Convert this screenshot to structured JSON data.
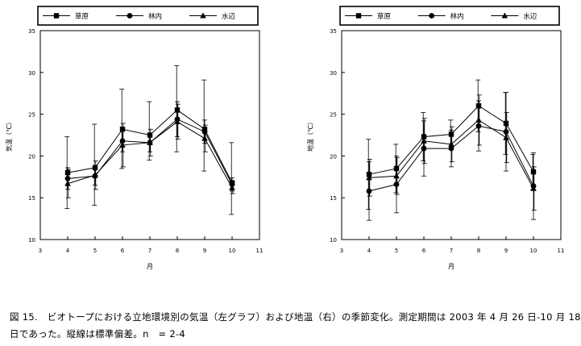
{
  "chart_data": [
    {
      "type": "line",
      "title": "",
      "xlabel": "月",
      "ylabel": "気温（℃）",
      "xlim": [
        3,
        11
      ],
      "ylim": [
        10,
        35
      ],
      "xticks": [
        3,
        4,
        5,
        6,
        7,
        8,
        9,
        10,
        11
      ],
      "yticks": [
        10,
        15,
        20,
        25,
        30,
        35
      ],
      "legend_position": "top",
      "x": [
        4,
        5,
        6,
        7,
        8,
        9,
        10
      ],
      "series": [
        {
          "name": "草原",
          "marker": "square",
          "values": [
            18.0,
            18.6,
            23.2,
            22.5,
            25.5,
            23.2,
            16.8
          ],
          "err": [
            [
              13.7,
              22.3
            ],
            [
              14.1,
              23.8
            ],
            [
              18.5,
              28.0
            ],
            [
              19.5,
              26.5
            ],
            [
              20.5,
              30.8
            ],
            [
              18.2,
              29.1
            ],
            [
              13.0,
              21.6
            ]
          ]
        },
        {
          "name": "林内",
          "marker": "circle",
          "values": [
            17.3,
            17.6,
            21.8,
            21.6,
            24.4,
            22.9,
            16.6
          ],
          "err": [
            [
              16.0,
              18.6
            ],
            [
              16.5,
              18.7
            ],
            [
              20.5,
              23.1
            ],
            [
              20.5,
              22.7
            ],
            [
              22.3,
              26.5
            ],
            [
              21.5,
              24.3
            ],
            [
              15.8,
              17.4
            ]
          ]
        },
        {
          "name": "水辺",
          "marker": "triangle",
          "values": [
            16.7,
            17.7,
            21.3,
            21.6,
            24.1,
            22.1,
            16.2
          ],
          "err": [
            [
              15.0,
              18.4
            ],
            [
              16.0,
              19.4
            ],
            [
              18.7,
              23.9
            ],
            [
              20.0,
              23.2
            ],
            [
              22.0,
              26.2
            ],
            [
              20.5,
              23.7
            ],
            [
              15.5,
              16.9
            ]
          ]
        }
      ]
    },
    {
      "type": "line",
      "title": "",
      "xlabel": "月",
      "ylabel": "地温（℃）",
      "xlim": [
        3,
        11
      ],
      "ylim": [
        10,
        35
      ],
      "xticks": [
        3,
        4,
        5,
        6,
        7,
        8,
        9,
        10,
        11
      ],
      "yticks": [
        10,
        15,
        20,
        25,
        30,
        35
      ],
      "legend_position": "top",
      "x": [
        4,
        5,
        6,
        7,
        8,
        9,
        10
      ],
      "series": [
        {
          "name": "草原",
          "marker": "square",
          "values": [
            17.8,
            18.5,
            22.3,
            22.6,
            26.0,
            23.9,
            18.1
          ],
          "err": [
            [
              13.6,
              22.0
            ],
            [
              15.6,
              21.4
            ],
            [
              19.4,
              25.2
            ],
            [
              20.9,
              24.3
            ],
            [
              22.9,
              29.1
            ],
            [
              20.2,
              27.6
            ],
            [
              16.0,
              20.2
            ]
          ]
        },
        {
          "name": "林内",
          "marker": "circle",
          "values": [
            15.8,
            16.6,
            20.9,
            20.9,
            23.6,
            22.9,
            16.4
          ],
          "err": [
            [
              12.3,
              19.3
            ],
            [
              13.2,
              20.0
            ],
            [
              17.6,
              24.2
            ],
            [
              18.7,
              23.1
            ],
            [
              20.6,
              26.6
            ],
            [
              18.2,
              27.6
            ],
            [
              12.4,
              20.4
            ]
          ]
        },
        {
          "name": "水辺",
          "marker": "triangle",
          "values": [
            17.4,
            17.6,
            21.8,
            21.4,
            24.3,
            22.2,
            16.1
          ],
          "err": [
            [
              15.2,
              19.6
            ],
            [
              15.4,
              19.8
            ],
            [
              19.1,
              24.5
            ],
            [
              19.3,
              23.5
            ],
            [
              21.3,
              27.3
            ],
            [
              19.2,
              25.2
            ],
            [
              13.5,
              18.7
            ]
          ]
        }
      ]
    }
  ],
  "caption": {
    "line1": "図 15.　ビオトープにおける立地環境別の気温（左グラフ）および地温（右）の季節変化。測定期間は 2003 年 4 月 26 日-10 月 18",
    "line2": "日であった。縦線は標準偏差。n　= 2-4"
  }
}
